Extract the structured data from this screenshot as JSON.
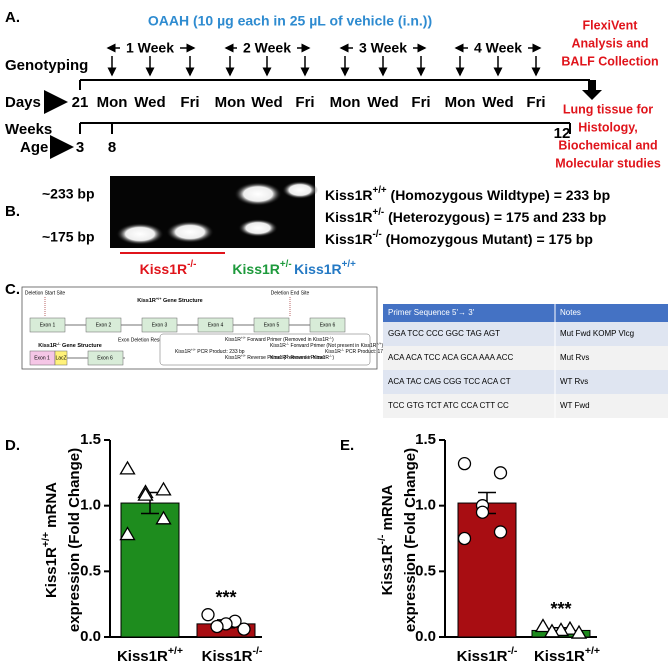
{
  "panel_a": {
    "label": "A.",
    "title": "OAAH (10 µg each in 25 µL of vehicle (i.n.))",
    "weeks": [
      "1 Week",
      "2 Week",
      "3 Week",
      "4 Week"
    ],
    "genotyping": "Genotyping",
    "days_label": "Days",
    "day_start": "21",
    "days": [
      "Mon",
      "Wed",
      "Fri",
      "Mon",
      "Wed",
      "Fri",
      "Mon",
      "Wed",
      "Fri",
      "Mon",
      "Wed",
      "Fri"
    ],
    "weeks_label": "Weeks",
    "age_label": "Age",
    "ages": [
      "3",
      "8",
      "12"
    ],
    "endpoint_1": [
      "FlexiVent",
      "Analysis and",
      "BALF Collection"
    ],
    "endpoint_2": [
      "Lung tissue for",
      "Histology,",
      "Biochemical and",
      "Molecular studies"
    ]
  },
  "panel_b": {
    "label": "B.",
    "band_labels": [
      "~233 bp",
      "~175 bp"
    ],
    "lane_groups": [
      "Kiss1R-/-",
      "Kiss1R+/-",
      "Kiss1R+/+"
    ],
    "legend": [
      "Kiss1R+/+ (Homozygous Wildtype) = 233 bp",
      "Kiss1R+/- (Heterozygous) = 175 and 233 bp",
      "Kiss1R-/- (Homozygous Mutant) = 175 bp"
    ]
  },
  "panel_c": {
    "label": "C.",
    "diagram": {
      "deletion_start": "Deletion Start Site",
      "deletion_end": "Deletion End Site",
      "wt_title": "Kiss1R+/+ Gene Structure",
      "exons": [
        "Exon 1",
        "Exon 2",
        "Exon 3",
        "Exon 4",
        "Exon 5",
        "Exon 6"
      ],
      "deletion_note": "Exon Deletion Resulting From Neomycin Insert and Cre Recombinase",
      "ko_title": "Kiss1R-/- Gene Structure",
      "ko_exons": [
        "Exon 1",
        "LacZ",
        "Exon 6"
      ],
      "legend": [
        "Kiss1R+/+ PCR Product: 233 bp",
        "Kiss1R+/+ Forward Primer (Removed in Kiss1R-/-)",
        "Kiss1R+/+ Reverse Primer (Removed in Kiss1R-/-)",
        "Kiss1R-/- Forward Primer (Not present in Kiss1R+/+)",
        "Kiss1R-/- Reverse Primer",
        "Kiss1R-/- PCR Product: 175 bp"
      ]
    },
    "table": {
      "header": [
        "Primer Sequence 5'→ 3'",
        "Notes"
      ],
      "rows": [
        [
          "GGA TCC CCC GGC TAG AGT",
          "Mut Fwd KOMP Vlcg"
        ],
        [
          "ACA ACA TCC ACA GCA AAA ACC",
          "Mut Rvs"
        ],
        [
          "ACA TAC CAG CGG TCC ACA CT",
          "WT Rvs"
        ],
        [
          "TCC GTG TCT ATC CCA CTT CC",
          "WT Fwd"
        ]
      ]
    }
  },
  "chart_data": [
    {
      "type": "bar",
      "panel": "D.",
      "ylabel": [
        "Kiss1R+/+ mRNA",
        "expression (Fold Change)"
      ],
      "categories": [
        "Kiss1R+/+",
        "Kiss1R-/-"
      ],
      "values": [
        1.02,
        0.1
      ],
      "errors": [
        0.08,
        0.03
      ],
      "colors": [
        "#1e8c1e",
        "#a80d12"
      ],
      "markers": [
        "triangle",
        "circle"
      ],
      "points": [
        [
          1.28,
          1.12,
          1.1,
          1.08,
          0.9,
          0.78
        ],
        [
          0.17,
          0.12,
          0.1,
          0.08,
          0.06
        ]
      ],
      "annotation": "***",
      "ylim": [
        0,
        1.5
      ],
      "yticks": [
        {
          "value": 0,
          "label": "0.0"
        },
        0.5,
        {
          "value": 1,
          "label": "1.0"
        },
        1.5
      ]
    },
    {
      "type": "bar",
      "panel": "E.",
      "ylabel": [
        "Kiss1R-/- mRNA",
        "expression (Fold Change)"
      ],
      "categories": [
        "Kiss1R-/-",
        "Kiss1R+/+"
      ],
      "values": [
        1.02,
        0.05
      ],
      "errors": [
        0.08,
        0.02
      ],
      "colors": [
        "#a80d12",
        "#1e8c1e"
      ],
      "markers": [
        "circle",
        "triangle"
      ],
      "points": [
        [
          1.32,
          1.25,
          1.0,
          0.95,
          0.8,
          0.75
        ],
        [
          0.08,
          0.06,
          0.05,
          0.04,
          0.03
        ]
      ],
      "annotation": "***",
      "ylim": [
        0,
        1.5
      ],
      "yticks": [
        {
          "value": 0,
          "label": "0.0"
        },
        0.5,
        {
          "value": 1,
          "label": "1.0"
        },
        1.5
      ]
    }
  ]
}
